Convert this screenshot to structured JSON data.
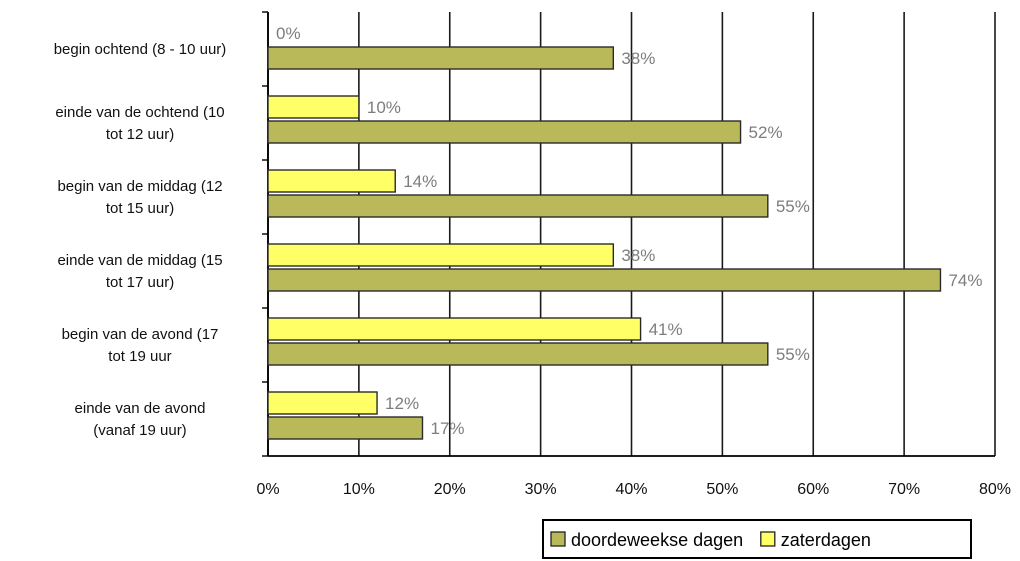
{
  "chart_data": {
    "type": "bar",
    "orientation": "horizontal",
    "categories": [
      [
        "begin ochtend (8 - 10 uur)"
      ],
      [
        "einde van de ochtend (10",
        "tot 12 uur)"
      ],
      [
        "begin van de middag (12",
        "tot 15 uur)"
      ],
      [
        "einde van de middag (15",
        "tot 17 uur)"
      ],
      [
        "begin van de avond (17",
        "tot 19 uur"
      ],
      [
        "einde van de avond",
        "(vanaf 19 uur)"
      ]
    ],
    "series": [
      {
        "name": "zaterdagen",
        "color": "#ffff66",
        "values": [
          0,
          10,
          14,
          38,
          41,
          12
        ],
        "labels": [
          "0%",
          "10%",
          "14%",
          "38%",
          "41%",
          "12%"
        ]
      },
      {
        "name": "doordeweekse dagen",
        "color": "#b9b95a",
        "values": [
          38,
          52,
          55,
          74,
          55,
          17
        ],
        "labels": [
          "38%",
          "52%",
          "55%",
          "74%",
          "55%",
          "17%"
        ]
      }
    ],
    "xlim": [
      0,
      80
    ],
    "x_ticks": [
      "0%",
      "10%",
      "20%",
      "30%",
      "40%",
      "50%",
      "60%",
      "70%",
      "80%"
    ],
    "grid": true,
    "legend": {
      "position": "bottom-right",
      "entries": [
        {
          "name": "doordeweekse dagen",
          "color": "#b9b95a"
        },
        {
          "name": "zaterdagen",
          "color": "#ffff66"
        }
      ]
    }
  }
}
